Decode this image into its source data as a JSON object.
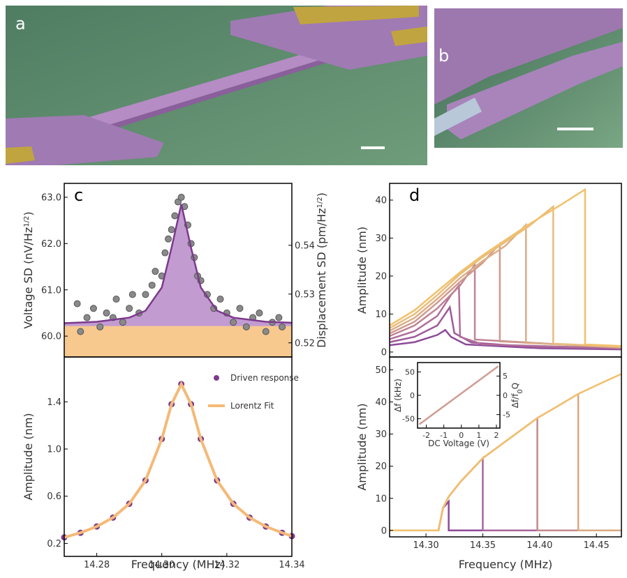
{
  "panels": {
    "a": "a",
    "b": "b",
    "c": "c",
    "d": "d"
  },
  "chart_data": [
    {
      "type": "scatter",
      "ylabel": {
        "pre": "Voltage SD (nV/Hz",
        "sup": "1/2",
        "post": ")"
      },
      "y2label": {
        "pre": "Displacement SD (pm/Hz",
        "sup": "1/2",
        "post": ")"
      },
      "xlim": [
        14.27,
        14.34
      ],
      "ylim": [
        59.55,
        63.3
      ],
      "y2lim": [
        0.5171,
        0.5527
      ],
      "yticks": [
        {
          "value": 60,
          "label": "60.0"
        },
        {
          "value": 61,
          "label": "61.0"
        },
        {
          "value": 62,
          "label": "62.0"
        },
        {
          "value": 63,
          "label": "63.0"
        }
      ],
      "y2ticks": [
        0.52,
        0.53,
        0.54
      ],
      "series": [
        {
          "color": "#f7c98f",
          "mode": "lines",
          "fill": "bottom",
          "x": [
            14.27,
            14.34
          ],
          "values": [
            60.2,
            60.2
          ]
        },
        {
          "color": "#8a8a8a",
          "mode": "markers",
          "x": [
            14.274,
            14.275,
            14.277,
            14.279,
            14.281,
            14.283,
            14.285,
            14.286,
            14.288,
            14.29,
            14.291,
            14.293,
            14.295,
            14.297,
            14.298,
            14.3,
            14.301,
            14.302,
            14.303,
            14.304,
            14.305,
            14.306,
            14.307,
            14.308,
            14.309,
            14.31,
            14.311,
            14.312,
            14.314,
            14.316,
            14.318,
            14.32,
            14.322,
            14.324,
            14.326,
            14.328,
            14.33,
            14.332,
            14.334,
            14.336,
            14.337
          ],
          "values": [
            60.7,
            60.1,
            60.4,
            60.6,
            60.2,
            60.5,
            60.4,
            60.8,
            60.3,
            60.6,
            60.9,
            60.5,
            60.9,
            61.1,
            61.4,
            61.3,
            61.8,
            62.1,
            62.3,
            62.6,
            62.9,
            63.0,
            62.8,
            62.4,
            62.0,
            61.7,
            61.3,
            61.2,
            60.9,
            60.6,
            60.8,
            60.5,
            60.3,
            60.6,
            60.2,
            60.4,
            60.5,
            60.1,
            60.3,
            60.4,
            60.2
          ]
        },
        {
          "color": "#7b3a8c",
          "mode": "lines",
          "fill_to_series": 0,
          "fill_color": "#c29bd0",
          "x": [
            14.27,
            14.28,
            14.29,
            14.295,
            14.3,
            14.303,
            14.306,
            14.309,
            14.312,
            14.317,
            14.322,
            14.332,
            14.34
          ],
          "values": [
            60.28,
            60.31,
            60.4,
            60.55,
            61.05,
            61.91,
            62.85,
            61.91,
            61.05,
            60.55,
            60.4,
            60.31,
            60.29
          ]
        }
      ]
    },
    {
      "type": "scatter",
      "ylabel": "Amplitude (nm)",
      "xlabel": "Frequency (MHz)",
      "xlim": [
        14.27,
        14.34
      ],
      "ylim": [
        0.09,
        1.78
      ],
      "xticks": [
        {
          "value": 14.28,
          "label": "14.28"
        },
        {
          "value": 14.3,
          "label": "14.30"
        },
        {
          "value": 14.32,
          "label": "14.32"
        },
        {
          "value": 14.34,
          "label": "14.34"
        }
      ],
      "yticks": [
        0.2,
        0.6,
        {
          "value": 1,
          "label": "1.0"
        },
        1.4
      ],
      "legend": "upper right",
      "series": [
        {
          "name": "Driven response",
          "color": "#7b3a8c",
          "mode": "markers",
          "x": [
            14.27,
            14.275,
            14.28,
            14.285,
            14.29,
            14.295,
            14.3,
            14.303,
            14.306,
            14.309,
            14.312,
            14.317,
            14.322,
            14.327,
            14.332,
            14.337,
            14.34
          ],
          "values": [
            0.251,
            0.29,
            0.343,
            0.419,
            0.536,
            0.734,
            1.085,
            1.38,
            1.55,
            1.38,
            1.085,
            0.734,
            0.536,
            0.419,
            0.343,
            0.29,
            0.262
          ]
        },
        {
          "name": "Lorentz Fit",
          "color": "#f5b977",
          "mode": "lines",
          "x": [
            14.27,
            14.275,
            14.28,
            14.285,
            14.29,
            14.295,
            14.3,
            14.303,
            14.306,
            14.309,
            14.312,
            14.317,
            14.322,
            14.327,
            14.332,
            14.337,
            14.34
          ],
          "values": [
            0.251,
            0.29,
            0.343,
            0.419,
            0.536,
            0.734,
            1.085,
            1.38,
            1.55,
            1.38,
            1.085,
            0.734,
            0.536,
            0.419,
            0.343,
            0.29,
            0.262
          ]
        }
      ]
    },
    {
      "type": "line",
      "ylabel": "Amplitude (nm)",
      "xlim": [
        14.268,
        14.472
      ],
      "ylim": [
        -1.3,
        44.4
      ],
      "yticks": [
        0,
        10,
        20,
        30,
        40
      ],
      "series": [
        {
          "color": "#8e4a9a",
          "mode": "lines",
          "x": [
            14.268,
            14.29,
            14.31,
            14.317,
            14.322,
            14.335,
            14.4,
            14.472
          ],
          "values": [
            1.8,
            2.6,
            4.5,
            5.8,
            4,
            2,
            1,
            0.7
          ]
        },
        {
          "color": "#9e5a9a",
          "mode": "lines",
          "x": [
            14.268,
            14.29,
            14.31,
            14.321,
            14.325,
            14.34,
            14.4,
            14.472
          ],
          "values": [
            2.6,
            4,
            7,
            11.8,
            5,
            2.5,
            1.2,
            0.9
          ]
        },
        {
          "color": "#b06e98",
          "mode": "lines",
          "x": [
            14.268,
            14.29,
            14.31,
            14.322,
            14.329,
            14.33,
            14.35,
            14.472
          ],
          "values": [
            3.4,
            5.5,
            9.5,
            15,
            17.5,
            4,
            2,
            1
          ]
        },
        {
          "color": "#c08494",
          "mode": "lines",
          "x": [
            14.268,
            14.29,
            14.31,
            14.33,
            14.343,
            14.343,
            14.472
          ],
          "values": [
            4.2,
            7,
            11.5,
            17.5,
            23,
            3.3,
            1.1
          ]
        },
        {
          "color": "#d09a8e",
          "mode": "lines",
          "x": [
            14.268,
            14.29,
            14.31,
            14.33,
            14.35,
            14.365,
            14.365,
            14.472
          ],
          "values": [
            4.9,
            8,
            13,
            18.5,
            23.5,
            28.5,
            2.8,
            1.2
          ]
        },
        {
          "color": "#dcae86",
          "mode": "lines",
          "x": [
            14.268,
            14.29,
            14.31,
            14.33,
            14.35,
            14.37,
            14.388,
            14.388,
            14.472
          ],
          "values": [
            5.6,
            9,
            14,
            19.5,
            24,
            28,
            33.5,
            2.4,
            1.3
          ]
        },
        {
          "color": "#e8bd7c",
          "mode": "lines",
          "x": [
            14.268,
            14.29,
            14.31,
            14.33,
            14.35,
            14.37,
            14.39,
            14.412,
            14.412,
            14.472
          ],
          "values": [
            6.3,
            10,
            15,
            20.5,
            25,
            29,
            33,
            38.3,
            2.2,
            1.4
          ]
        },
        {
          "color": "#f2c06a",
          "mode": "lines",
          "x": [
            14.268,
            14.29,
            14.31,
            14.33,
            14.35,
            14.37,
            14.39,
            14.42,
            14.44,
            14.44,
            14.472
          ],
          "values": [
            7,
            11,
            16,
            21,
            25.5,
            29.5,
            33.5,
            39,
            42.8,
            2,
            1.6
          ]
        }
      ]
    },
    {
      "type": "line",
      "ylabel": "Amplitude (nm)",
      "xlabel": "Frequency (MHz)",
      "xlim": [
        14.268,
        14.472
      ],
      "ylim": [
        -2,
        54
      ],
      "xticks": [
        {
          "value": 14.3,
          "label": "14.30"
        },
        14.35,
        {
          "value": 14.4,
          "label": "14.40"
        },
        14.45
      ],
      "yticks": [
        0,
        10,
        20,
        30,
        40,
        50
      ],
      "series": [
        {
          "color": "#8e4a9a",
          "mode": "lines",
          "x": [
            14.268,
            14.311,
            14.315,
            14.32,
            14.32,
            14.472
          ],
          "values": [
            0,
            0,
            7,
            9,
            0,
            0
          ]
        },
        {
          "color": "#a9669a",
          "mode": "lines",
          "x": [
            14.268,
            14.311,
            14.315,
            14.32,
            14.33,
            14.35,
            14.35,
            14.472
          ],
          "values": [
            0,
            0,
            7,
            10.5,
            15,
            22.5,
            0,
            0
          ]
        },
        {
          "color": "#c48a8c",
          "mode": "lines",
          "x": [
            14.268,
            14.311,
            14.315,
            14.32,
            14.33,
            14.35,
            14.375,
            14.398,
            14.398,
            14.472
          ],
          "values": [
            0,
            0,
            7,
            10.5,
            15,
            22.5,
            29,
            35,
            0,
            0
          ]
        },
        {
          "color": "#d9a880",
          "mode": "lines",
          "x": [
            14.268,
            14.311,
            14.315,
            14.32,
            14.33,
            14.35,
            14.375,
            14.398,
            14.415,
            14.434,
            14.434,
            14.472
          ],
          "values": [
            0,
            0,
            7,
            10.5,
            15,
            22.5,
            29,
            35,
            38.5,
            42.5,
            0,
            0
          ]
        },
        {
          "color": "#f2bf6c",
          "mode": "lines",
          "x": [
            14.268,
            14.311,
            14.315,
            14.32,
            14.33,
            14.35,
            14.375,
            14.398,
            14.415,
            14.434,
            14.455,
            14.472
          ],
          "values": [
            0,
            0,
            7,
            10.5,
            15,
            22.5,
            29,
            35,
            38.5,
            42.5,
            46,
            48.7
          ]
        }
      ]
    },
    {
      "type": "line",
      "ylabel": "Δf (kHz)",
      "xlabel": "DC Voltage (V)",
      "y2label": {
        "pre": "Δf/f",
        "sub": "0",
        "post": "Q"
      },
      "xlim": [
        -2.5,
        2.2
      ],
      "ylim": [
        -70,
        70
      ],
      "y2lim": [
        -8.5,
        8.5
      ],
      "xticks": [
        -2,
        -1,
        0,
        1,
        2
      ],
      "yticks": [
        -50,
        0,
        50
      ],
      "y2ticks": [
        -5,
        0,
        5
      ],
      "series": [
        {
          "color": "#cf9c92",
          "mode": "lines",
          "x": [
            -2.4,
            2.1
          ],
          "values": [
            -62,
            62
          ]
        }
      ]
    }
  ]
}
